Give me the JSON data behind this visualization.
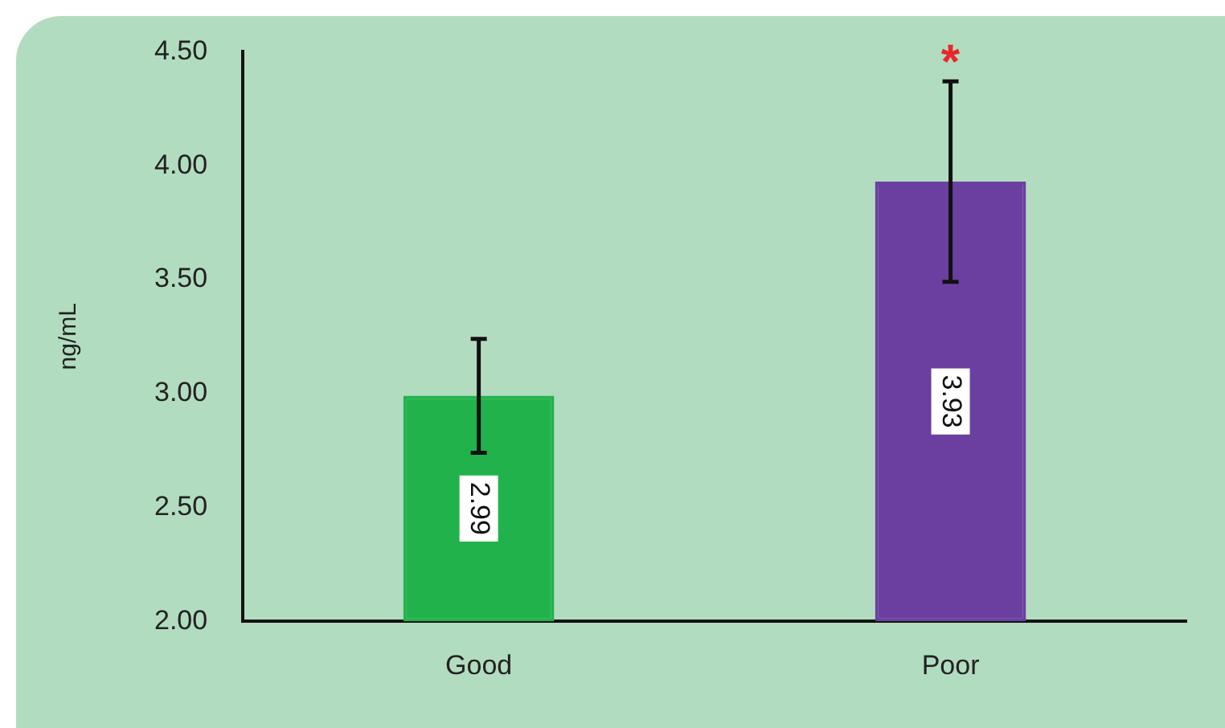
{
  "chart_data": {
    "type": "bar",
    "ylabel": "ng/mL",
    "categories": [
      "Good",
      "Poor"
    ],
    "values": [
      2.99,
      3.93
    ],
    "colors": [
      "#21b24b",
      "#6b3fa0"
    ],
    "errors": [
      0.25,
      0.44
    ],
    "data_labels": true,
    "ylim": [
      2,
      4.5
    ],
    "yticks": [
      {
        "value": 2,
        "label": "2.00"
      },
      {
        "value": 2.5,
        "label": "2.50"
      },
      {
        "value": 3,
        "label": "3.00"
      },
      {
        "value": 3.5,
        "label": "3.50"
      },
      {
        "value": 4,
        "label": "4.00"
      },
      {
        "value": 4.5,
        "label": "4.50"
      }
    ],
    "grid": false,
    "legend": false,
    "annotations": [
      "*"
    ]
  }
}
